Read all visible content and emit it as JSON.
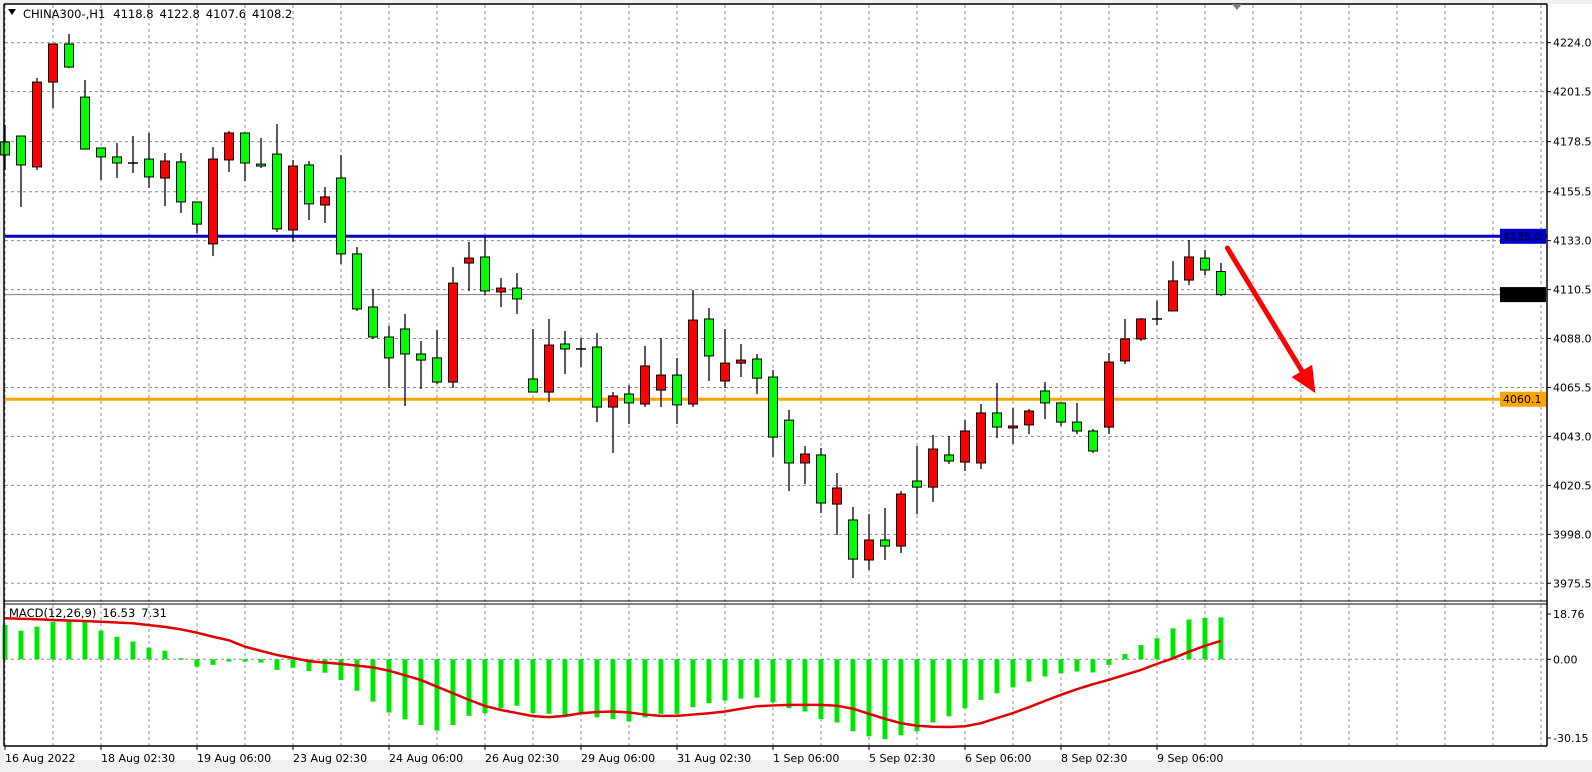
{
  "header": {
    "symbol": "CHINA300-,H1",
    "open": "4118.8",
    "high": "4122.8",
    "low": "4107.6",
    "close": "4108.2"
  },
  "colors": {
    "up_candle": "#ff0000",
    "down_candle": "#00ff00",
    "macd_histogram": "#00e600",
    "signal_line": "#e00000",
    "support_line": "#ffa500",
    "resistance_line": "#0000c8",
    "current_price_line": "#808080",
    "arrow": "#ff0000",
    "grid": "#8c8c8c"
  },
  "chart_data": [
    {
      "type": "candlestick",
      "symbol": "CHINA300-",
      "timeframe": "H1",
      "ylim": [
        3970,
        4245
      ],
      "grid": true,
      "y_ticks": [
        "4224.0",
        "4201.5",
        "4178.5",
        "4155.5",
        "4133.0",
        "4110.5",
        "4088.0",
        "4065.5",
        "4043.0",
        "4020.5",
        "3998.0",
        "3975.5"
      ],
      "x_ticks": [
        {
          "bar": 0,
          "label": "16 Aug 2022"
        },
        {
          "bar": 6,
          "label": "18 Aug 02:30"
        },
        {
          "bar": 12,
          "label": "19 Aug 06:00"
        },
        {
          "bar": 18,
          "label": "23 Aug 02:30"
        },
        {
          "bar": 24,
          "label": "24 Aug 06:00"
        },
        {
          "bar": 30,
          "label": "26 Aug 02:30"
        },
        {
          "bar": 36,
          "label": "29 Aug 06:00"
        },
        {
          "bar": 42,
          "label": "31 Aug 02:30"
        },
        {
          "bar": 48,
          "label": "1 Sep 06:00"
        },
        {
          "bar": 54,
          "label": "5 Sep 02:30"
        },
        {
          "bar": 60,
          "label": "6 Sep 06:00"
        },
        {
          "bar": 66,
          "label": "8 Sep 02:30"
        },
        {
          "bar": 72,
          "label": "9 Sep 06:00"
        }
      ],
      "ohlc_columns": [
        "open",
        "high",
        "low",
        "close"
      ],
      "ohlc": [
        [
          4178.4,
          4186.2,
          4165.5,
          4172.4
        ],
        [
          4181.1,
          4181.1,
          4148.5,
          4167.8
        ],
        [
          4166.9,
          4207.8,
          4165.5,
          4205.9
        ],
        [
          4205.9,
          4223.4,
          4194.0,
          4223.4
        ],
        [
          4223.4,
          4228.0,
          4212.4,
          4212.8
        ],
        [
          4199.0,
          4206.9,
          4175.1,
          4175.1
        ],
        [
          4175.6,
          4175.6,
          4160.9,
          4171.5
        ],
        [
          4171.5,
          4177.9,
          4161.8,
          4168.7
        ],
        [
          4168.7,
          4181.1,
          4164.1,
          4168.7
        ],
        [
          4170.5,
          4182.5,
          4157.2,
          4162.3
        ],
        [
          4161.8,
          4173.3,
          4148.9,
          4169.6
        ],
        [
          4169.2,
          4173.3,
          4145.7,
          4150.8
        ],
        [
          4150.8,
          4150.8,
          4136.5,
          4140.6
        ],
        [
          4131.5,
          4176.0,
          4125.9,
          4170.5
        ],
        [
          4170.1,
          4183.4,
          4164.6,
          4182.5
        ],
        [
          4182.5,
          4182.5,
          4160.4,
          4168.7
        ],
        [
          4168.2,
          4180.2,
          4166.4,
          4167.3
        ],
        [
          4172.8,
          4186.6,
          4137.0,
          4138.4
        ],
        [
          4137.9,
          4170.1,
          4132.4,
          4167.3
        ],
        [
          4167.8,
          4169.6,
          4142.5,
          4149.9
        ],
        [
          4149.4,
          4157.7,
          4141.1,
          4153.1
        ],
        [
          4161.8,
          4172.4,
          4122.3,
          4126.9
        ],
        [
          4126.9,
          4130.1,
          4100.7,
          4101.6
        ],
        [
          4102.5,
          4110.8,
          4087.8,
          4088.7
        ],
        [
          4088.7,
          4093.8,
          4065.3,
          4079.1
        ],
        [
          4092.4,
          4099.3,
          4057.0,
          4080.9
        ],
        [
          4080.9,
          4086.9,
          4064.8,
          4078.1
        ],
        [
          4079.1,
          4091.9,
          4067.1,
          4068.0
        ],
        [
          4068.0,
          4120.9,
          4065.3,
          4113.5
        ],
        [
          4122.7,
          4132.4,
          4109.9,
          4125.0
        ],
        [
          4125.5,
          4134.7,
          4108.0,
          4109.9
        ],
        [
          4109.4,
          4115.8,
          4102.5,
          4111.2
        ],
        [
          4111.2,
          4118.1,
          4099.3,
          4106.2
        ],
        [
          4069.4,
          4092.4,
          4063.4,
          4063.4
        ],
        [
          4063.4,
          4097.0,
          4058.8,
          4085.0
        ],
        [
          4085.5,
          4091.5,
          4071.7,
          4083.2
        ],
        [
          4083.2,
          4088.2,
          4074.9,
          4083.2
        ],
        [
          4084.1,
          4090.5,
          4049.6,
          4056.5
        ],
        [
          4056.5,
          4063.4,
          4035.4,
          4061.6
        ],
        [
          4062.5,
          4066.6,
          4048.7,
          4058.4
        ],
        [
          4057.9,
          4084.6,
          4056.5,
          4075.4
        ],
        [
          4064.3,
          4088.2,
          4056.5,
          4071.2
        ],
        [
          4071.2,
          4079.1,
          4048.7,
          4057.5
        ],
        [
          4057.9,
          4110.3,
          4056.5,
          4096.5
        ],
        [
          4097.0,
          4102.0,
          4068.5,
          4080.0
        ],
        [
          4068.5,
          4092.4,
          4065.3,
          4076.7
        ],
        [
          4076.7,
          4085.5,
          4070.3,
          4078.1
        ],
        [
          4078.6,
          4080.9,
          4062.5,
          4069.8
        ],
        [
          4070.3,
          4073.5,
          4033.5,
          4042.7
        ],
        [
          4050.5,
          4055.2,
          4017.9,
          4030.8
        ],
        [
          4030.8,
          4038.6,
          4021.1,
          4034.9
        ],
        [
          4034.5,
          4037.7,
          4007.8,
          4012.4
        ],
        [
          4011.9,
          4026.2,
          3997.7,
          4019.3
        ],
        [
          4004.6,
          4010.6,
          3977.9,
          3986.6
        ],
        [
          3986.2,
          4007.3,
          3981.6,
          3995.4
        ],
        [
          3995.4,
          4010.1,
          3986.2,
          3992.6
        ],
        [
          3992.6,
          4017.9,
          3989.4,
          4016.5
        ],
        [
          4022.5,
          4038.6,
          4007.3,
          4019.7
        ],
        [
          4019.7,
          4043.7,
          4012.9,
          4037.2
        ],
        [
          4034.5,
          4043.2,
          4030.3,
          4031.7
        ],
        [
          4031.2,
          4050.5,
          4027.1,
          4045.5
        ],
        [
          4030.8,
          4057.9,
          4028.0,
          4053.8
        ],
        [
          4053.8,
          4067.6,
          4042.3,
          4047.3
        ],
        [
          4046.9,
          4056.1,
          4039.5,
          4047.8
        ],
        [
          4048.3,
          4055.6,
          4044.1,
          4054.7
        ],
        [
          4063.9,
          4068.0,
          4051.0,
          4058.4
        ],
        [
          4058.4,
          4058.4,
          4047.8,
          4049.6
        ],
        [
          4049.6,
          4058.4,
          4044.1,
          4045.5
        ],
        [
          4045.5,
          4046.4,
          4035.4,
          4036.3
        ],
        [
          4047.3,
          4081.4,
          4044.1,
          4077.2
        ],
        [
          4077.7,
          4097.0,
          4076.3,
          4087.8
        ],
        [
          4087.8,
          4097.4,
          4086.9,
          4097.0
        ],
        [
          4097.0,
          4105.3,
          4094.2,
          4097.0
        ],
        [
          4100.7,
          4123.6,
          4100.7,
          4114.5
        ],
        [
          4114.9,
          4133.3,
          4112.6,
          4125.5
        ],
        [
          4125.0,
          4128.7,
          4117.2,
          4119.5
        ],
        [
          4118.8,
          4122.8,
          4107.6,
          4108.2
        ]
      ],
      "horizontal_lines": [
        {
          "role": "resistance",
          "price": 4135.0,
          "label": "4135.0"
        },
        {
          "role": "support",
          "price": 4060.1,
          "label": "4060.1"
        },
        {
          "role": "current-price",
          "price": 4108.2,
          "label": "4108.2"
        }
      ],
      "arrow": {
        "from": {
          "bar": 76.4,
          "price": 4129.6
        },
        "to": {
          "bar": 81.9,
          "price": 4062.9
        }
      }
    },
    {
      "type": "bar+line",
      "indicator": "MACD(12,26,9)",
      "label": "MACD(12,26,9)",
      "main_value": "16.53",
      "signal_value": "7.31",
      "y_ticks": [
        "18.76",
        "0.00",
        "-30.15"
      ],
      "ylim": [
        -33,
        20
      ],
      "histogram": [
        13.5,
        11.3,
        12.9,
        14.8,
        15.5,
        14.8,
        11.3,
        8.9,
        7.0,
        4.6,
        3.4,
        0.4,
        -2.9,
        -2.2,
        -0.9,
        -0.9,
        -1.3,
        -4.2,
        -3.3,
        -4.6,
        -5.3,
        -8.2,
        -12.4,
        -16.7,
        -21.0,
        -23.7,
        -25.9,
        -28.1,
        -25.9,
        -22.3,
        -21.3,
        -19.3,
        -18.3,
        -21.2,
        -21.5,
        -21.9,
        -21.0,
        -22.9,
        -23.6,
        -24.5,
        -22.9,
        -21.5,
        -21.5,
        -18.9,
        -17.3,
        -16.3,
        -15.5,
        -15.1,
        -17.0,
        -19.3,
        -20.6,
        -23.6,
        -24.9,
        -28.4,
        -30.4,
        -31.5,
        -30.0,
        -28.4,
        -24.9,
        -22.5,
        -19.3,
        -16.0,
        -13.4,
        -11.1,
        -8.8,
        -6.8,
        -5.5,
        -4.8,
        -5.2,
        -2.2,
        2.1,
        5.6,
        8.3,
        12.2,
        15.7,
        16.3,
        16.53
      ],
      "signal": [
        16.2,
        16.0,
        15.8,
        15.5,
        15.3,
        15.1,
        14.8,
        14.5,
        14.2,
        13.5,
        12.8,
        11.8,
        10.5,
        8.9,
        7.5,
        5.0,
        3.3,
        1.7,
        0.5,
        -0.7,
        -1.3,
        -1.8,
        -2.5,
        -3.2,
        -4.5,
        -6.3,
        -8.2,
        -10.8,
        -13.4,
        -16.0,
        -18.4,
        -20.0,
        -21.2,
        -22.4,
        -22.8,
        -22.3,
        -21.3,
        -20.8,
        -20.6,
        -21.0,
        -21.8,
        -22.3,
        -22.3,
        -21.8,
        -21.3,
        -20.6,
        -19.5,
        -18.5,
        -18.2,
        -18.0,
        -18.0,
        -18.0,
        -18.3,
        -19.5,
        -21.5,
        -23.5,
        -25.2,
        -26.2,
        -26.6,
        -26.7,
        -26.4,
        -25.2,
        -23.2,
        -21.2,
        -18.9,
        -16.4,
        -14.0,
        -11.8,
        -9.8,
        -8.1,
        -6.1,
        -4.2,
        -1.8,
        0.4,
        3.0,
        5.3,
        7.31
      ]
    }
  ]
}
